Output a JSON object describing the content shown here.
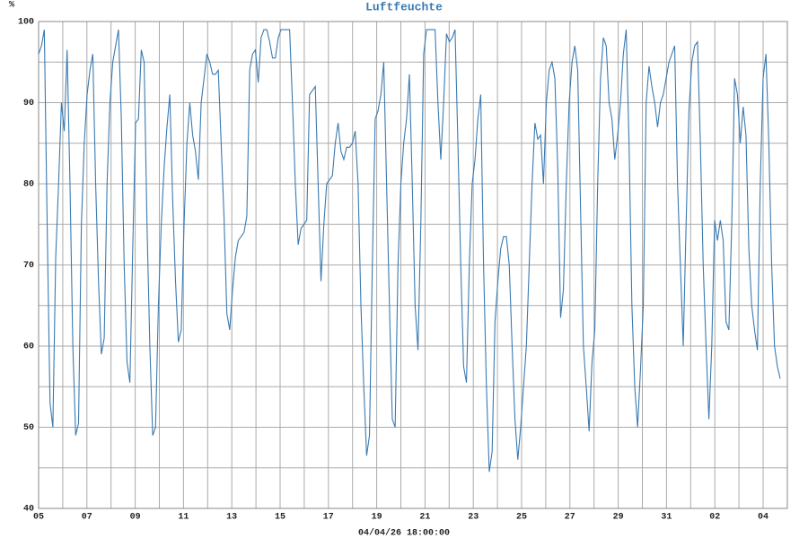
{
  "chart_data": {
    "type": "line",
    "title": "Luftfeuchte",
    "ylabel": "%",
    "xlabel": "04/04/26 18:00:00",
    "color": "#3a7ab0",
    "grid": true,
    "xlim": [
      0,
      262.5
    ],
    "xticks": [
      {
        "value": 0,
        "label": "05"
      },
      {
        "value": 16.93,
        "label": "07"
      },
      {
        "value": 33.87,
        "label": "09"
      },
      {
        "value": 50.8,
        "label": "11"
      },
      {
        "value": 67.73,
        "label": "13"
      },
      {
        "value": 84.67,
        "label": "15"
      },
      {
        "value": 101.6,
        "label": "17"
      },
      {
        "value": 118.53,
        "label": "19"
      },
      {
        "value": 135.47,
        "label": "21"
      },
      {
        "value": 152.4,
        "label": "23"
      },
      {
        "value": 169.33,
        "label": "25"
      },
      {
        "value": 186.27,
        "label": "27"
      },
      {
        "value": 203.2,
        "label": "29"
      },
      {
        "value": 220.13,
        "label": "31"
      },
      {
        "value": 237.07,
        "label": "02"
      },
      {
        "value": 254,
        "label": "04"
      }
    ],
    "xminor": [
      8.47,
      25.4,
      42.33,
      59.27,
      76.2,
      93.13,
      110.07,
      127,
      143.93,
      160.87,
      177.8,
      194.73,
      211.67,
      228.6,
      245.53
    ],
    "ylim": [
      40,
      100
    ],
    "yticks": [
      40,
      50,
      60,
      70,
      80,
      90,
      100
    ],
    "yminor": [
      45,
      55,
      65,
      75,
      85,
      95
    ],
    "values": [
      96,
      97,
      99,
      75,
      53,
      50,
      71,
      80,
      90,
      86.5,
      96.5,
      80,
      60,
      49,
      50.5,
      75,
      85,
      91,
      94,
      96,
      80,
      68,
      59,
      61,
      80,
      90,
      95,
      97,
      99,
      88,
      70,
      58,
      55.5,
      72,
      87.5,
      88,
      96.5,
      95,
      75,
      60,
      49,
      50,
      65,
      75,
      82,
      87,
      91,
      78,
      68,
      60.5,
      62,
      75,
      85,
      90,
      86,
      84,
      80.5,
      90,
      93,
      96,
      95,
      93.5,
      93.5,
      94,
      85,
      76,
      64,
      62,
      67,
      71,
      73,
      73.5,
      74,
      76,
      94,
      96,
      96.5,
      92.5,
      98,
      99,
      99,
      97.5,
      95.5,
      95.5,
      98,
      99,
      99,
      99,
      99,
      90,
      80,
      72.5,
      74.5,
      75,
      75.5,
      91,
      91.5,
      92,
      80,
      68,
      75,
      80,
      80.5,
      81,
      85,
      87.5,
      84,
      83,
      84.5,
      84.5,
      85,
      86.5,
      80,
      65,
      55,
      46.5,
      49,
      70,
      88,
      89,
      91,
      95,
      80,
      65,
      51,
      50,
      70,
      80,
      85,
      88,
      93.5,
      80,
      65,
      59.5,
      75,
      96,
      99,
      99,
      99,
      99,
      90,
      83,
      90,
      98.5,
      97.5,
      98,
      99,
      85,
      70,
      57.5,
      55.5,
      70,
      80,
      83,
      88,
      91,
      70,
      55,
      44.5,
      47,
      63,
      68,
      72,
      73.5,
      73.5,
      70,
      60,
      51,
      46,
      50,
      55,
      60,
      70,
      80,
      87.5,
      85.5,
      86,
      80,
      90,
      94,
      95,
      93,
      82,
      63.5,
      67,
      80,
      90,
      95,
      97,
      94,
      77,
      60,
      55,
      49.5,
      58,
      62,
      80,
      93,
      98,
      97,
      90,
      88,
      83,
      86,
      90,
      96,
      99,
      85,
      65,
      55,
      50,
      57,
      65,
      90,
      94.5,
      92,
      90,
      87,
      90,
      91,
      93,
      95,
      96,
      97,
      80,
      70,
      60,
      75,
      89,
      95,
      97,
      97.5,
      85,
      70,
      60,
      51,
      60,
      75.5,
      73,
      75.5,
      73,
      63,
      62,
      75,
      93,
      91,
      85,
      89.5,
      86,
      72,
      65,
      62,
      59.5,
      80,
      93,
      96,
      85,
      70,
      60,
      57.5,
      56
    ]
  }
}
